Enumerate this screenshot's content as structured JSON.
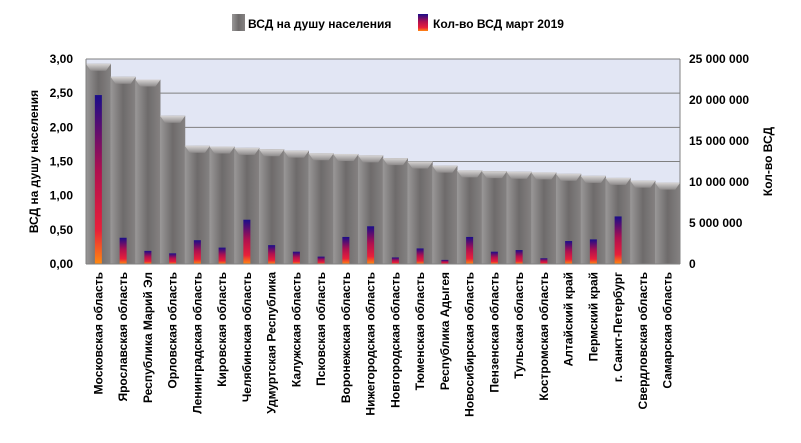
{
  "chart_data": {
    "type": "bar",
    "categories": [
      "Московская область",
      "Ярославская область",
      "Республика Марий Эл",
      "Орловская область",
      "Ленинградская область",
      "Кировская область",
      "Челябинская область",
      "Удмуртская Республика",
      "Калужская область",
      "Псковская область",
      "Воронежская область",
      "Нижегородская область",
      "Новгородская область",
      "Тюменская область",
      "Республика Адыгея",
      "Новосибирская область",
      "Пензенская область",
      "Тульская область",
      "Костромская область",
      "Алтайский край",
      "Пермский край",
      "г. Санкт-Петербург",
      "Свердловская область",
      "Самарская область"
    ],
    "series": [
      {
        "name": "ВСД на душу населения",
        "axis": "left",
        "color": "#7f7c7c",
        "values": [
          2.93,
          2.74,
          2.7,
          2.17,
          1.73,
          1.72,
          1.7,
          1.68,
          1.66,
          1.62,
          1.61,
          1.59,
          1.55,
          1.5,
          1.44,
          1.37,
          1.36,
          1.35,
          1.34,
          1.32,
          1.29,
          1.26,
          1.22,
          1.19
        ]
      },
      {
        "name": "Кол-во ВСД март 2019",
        "axis": "right",
        "color": "#1a0d8a",
        "values": [
          20600000,
          3200000,
          1600000,
          1300000,
          2900000,
          2000000,
          5400000,
          2300000,
          1500000,
          900000,
          3300000,
          4600000,
          800000,
          1900000,
          500000,
          3300000,
          1500000,
          1700000,
          700000,
          2800000,
          3000000,
          5800000,
          0,
          0
        ]
      }
    ],
    "ylabel": "ВСД на душу населения",
    "y2label": "Кол-во ВСД",
    "ylim": [
      0,
      3
    ],
    "y2lim": [
      0,
      25000000
    ],
    "yticks": [
      "0,00",
      "0,50",
      "1,00",
      "1,50",
      "2,00",
      "2,50",
      "3,00"
    ],
    "y2ticks": [
      "0",
      "5 000 000",
      "10 000 000",
      "15 000 000",
      "20 000 000",
      "25 000 000"
    ],
    "legend": "top",
    "grid": true,
    "plot_background": "#e2e6f4"
  }
}
